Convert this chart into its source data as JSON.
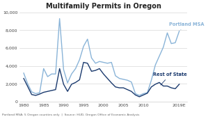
{
  "title": "Multifamily Permits in Oregon",
  "footnote": "Portland MSA: 5 Oregon counties only  |  Source: HUD, Oregon Office of Economic Analysis",
  "ylim": [
    0,
    10000
  ],
  "yticks": [
    0,
    2000,
    4000,
    6000,
    8000,
    10000
  ],
  "xticks": [
    1980,
    1985,
    1990,
    1995,
    2000,
    2005,
    2010,
    2019
  ],
  "xtick_labels": [
    "1980",
    "1985",
    "1990",
    "1995",
    "2000",
    "2005",
    "2010",
    "2019E"
  ],
  "portland_msa_color": "#8ab4d8",
  "rest_of_state_color": "#1b3a6e",
  "background_color": "#ffffff",
  "plot_bg_color": "#ffffff",
  "grid_color": "#d8d8d8",
  "portland_label": "Portland MSA",
  "rest_label": "Rest of State",
  "years": [
    1980,
    1981,
    1982,
    1983,
    1984,
    1985,
    1986,
    1987,
    1988,
    1989,
    1990,
    1991,
    1992,
    1993,
    1994,
    1995,
    1996,
    1997,
    1998,
    1999,
    2000,
    2001,
    2002,
    2003,
    2004,
    2005,
    2006,
    2007,
    2008,
    2009,
    2010,
    2011,
    2012,
    2013,
    2014,
    2015,
    2016,
    2017,
    2018,
    2019
  ],
  "portland_msa": [
    3200,
    2000,
    1100,
    900,
    1000,
    3700,
    2800,
    3100,
    3100,
    9300,
    3600,
    2100,
    3100,
    3700,
    4700,
    6200,
    7000,
    4900,
    4300,
    4500,
    4400,
    4300,
    4400,
    2900,
    2600,
    2500,
    2400,
    2200,
    900,
    700,
    900,
    1000,
    2400,
    4100,
    5100,
    6100,
    7700,
    6500,
    6600,
    7900
  ],
  "rest_of_state": [
    2600,
    1700,
    800,
    700,
    850,
    1050,
    1150,
    1250,
    1350,
    3700,
    1950,
    1150,
    1950,
    2150,
    2450,
    4400,
    4300,
    3400,
    3500,
    3700,
    3100,
    2600,
    2100,
    1650,
    1550,
    1550,
    1350,
    1150,
    750,
    550,
    750,
    950,
    1650,
    1950,
    2150,
    1750,
    1750,
    1550,
    1450,
    1950
  ]
}
